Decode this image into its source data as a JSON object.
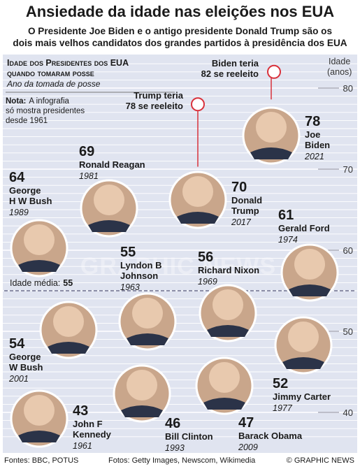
{
  "title": "Ansiedade da idade nas eleições nos EUA",
  "subtitle_lines": [
    "O Presidente Joe Biden e o antigo presidente Donald Trump são os",
    "dois mais velhos candidatos dos grandes partidos à presidência dos EUA"
  ],
  "footer": {
    "sources": "Fontes: BBC, POTUS",
    "photos": "Fotos: Getty Images, Newscom, Wikimedia",
    "credit": "© GRAPHIC NEWS"
  },
  "watermark": "GRAPHIC NEWS",
  "colors": {
    "panel": "#e0e4f0",
    "line": "#ffffff",
    "text": "#1a1a1a",
    "accent": "#d9313b",
    "avg_line": "#5a5a7a"
  },
  "chart_data": {
    "type": "scatter",
    "header": {
      "line1": "Idade dos Presidentes dos EUA",
      "line2": "quando tomaram posse",
      "line3": "Ano da tomada de posse"
    },
    "note": [
      "Nota: A infografia",
      "só mostra presidentes",
      "desde 1961"
    ],
    "note_label": "Nota:",
    "note_first_rest": "A infografia",
    "axis_label": [
      "Idade",
      "(anos)"
    ],
    "ylim": [
      37,
      86
    ],
    "ticks": [
      40,
      50,
      60,
      70,
      80
    ],
    "average": {
      "label": "Idade média: 55",
      "label_prefix": "Idade média:",
      "value": 55
    },
    "hypothetical": [
      {
        "lines": [
          "Biden teria",
          "82 se reeleito"
        ],
        "age": 82
      },
      {
        "lines": [
          "Trump teria",
          "78 se reeleito"
        ],
        "age": 78
      }
    ],
    "presidents": [
      {
        "name": "Joe Biden",
        "name_lines": [
          "Joe",
          "Biden"
        ],
        "age": 78,
        "year": "2021"
      },
      {
        "name": "Donald Trump",
        "name_lines": [
          "Donald",
          "Trump"
        ],
        "age": 70,
        "year": "2017"
      },
      {
        "name": "Ronald Reagan",
        "name_lines": [
          "Ronald Reagan"
        ],
        "age": 69,
        "year": "1981"
      },
      {
        "name": "George H W Bush",
        "name_lines": [
          "George",
          "H W Bush"
        ],
        "age": 64,
        "year": "1989"
      },
      {
        "name": "Gerald Ford",
        "name_lines": [
          "Gerald Ford"
        ],
        "age": 61,
        "year": "1974"
      },
      {
        "name": "Lyndon B Johnson",
        "name_lines": [
          "Lyndon B",
          "Johnson"
        ],
        "age": 55,
        "year": "1963"
      },
      {
        "name": "Richard Nixon",
        "name_lines": [
          "Richard Nixon"
        ],
        "age": 56,
        "year": "1969"
      },
      {
        "name": "George W Bush",
        "name_lines": [
          "George",
          "W Bush"
        ],
        "age": 54,
        "year": "2001"
      },
      {
        "name": "Jimmy Carter",
        "name_lines": [
          "Jimmy Carter"
        ],
        "age": 52,
        "year": "1977"
      },
      {
        "name": "Barack Obama",
        "name_lines": [
          "Barack Obama"
        ],
        "age": 47,
        "year": "2009"
      },
      {
        "name": "Bill Clinton",
        "name_lines": [
          "Bill Clinton"
        ],
        "age": 46,
        "year": "1993"
      },
      {
        "name": "John F Kennedy",
        "name_lines": [
          "John F",
          "Kennedy"
        ],
        "age": 43,
        "year": "1961"
      }
    ]
  }
}
